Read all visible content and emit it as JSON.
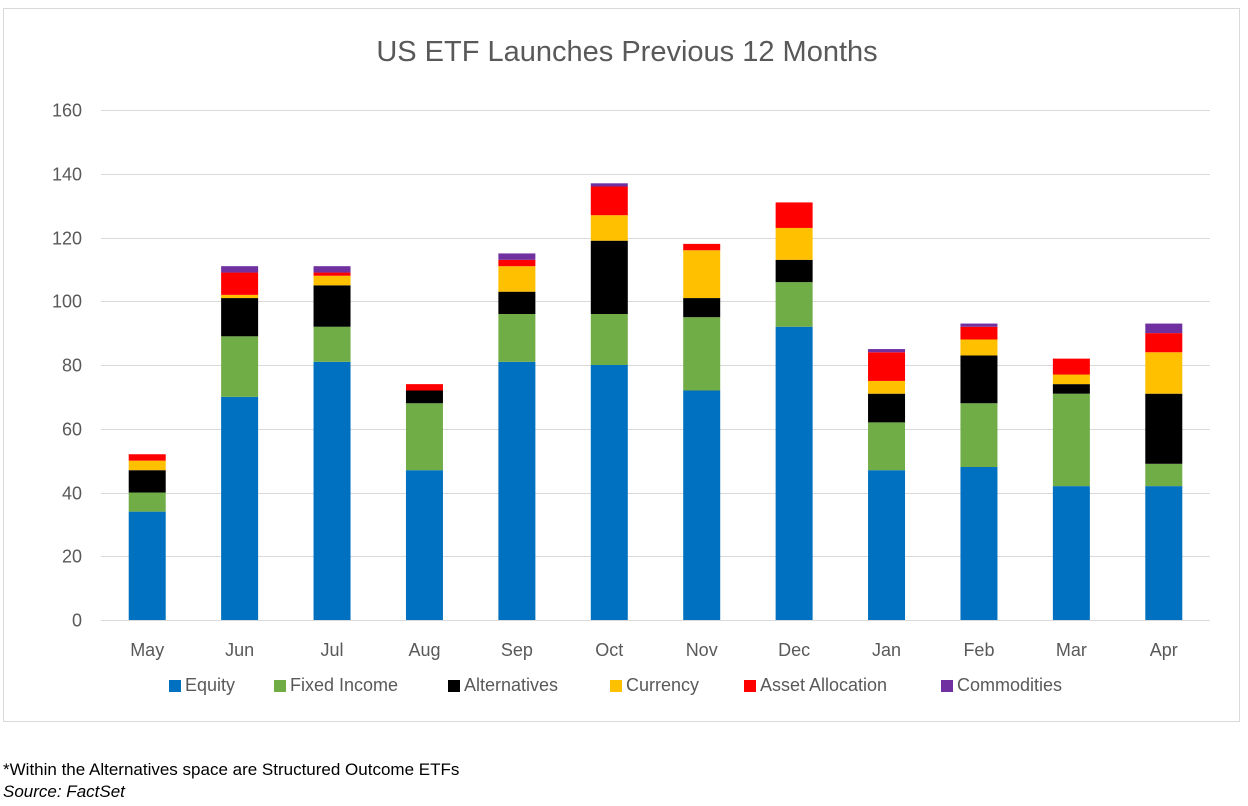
{
  "chart_data": {
    "type": "bar",
    "stacked": true,
    "title": "US ETF Launches Previous 12 Months",
    "xlabel": "",
    "ylabel": "",
    "ylim": [
      0,
      160
    ],
    "yticks": [
      0,
      20,
      40,
      60,
      80,
      100,
      120,
      140,
      160
    ],
    "grid": true,
    "legend_position": "bottom",
    "categories": [
      "May",
      "Jun",
      "Jul",
      "Aug",
      "Sep",
      "Oct",
      "Nov",
      "Dec",
      "Jan",
      "Feb",
      "Mar",
      "Apr"
    ],
    "series": [
      {
        "name": "Equity",
        "color": "#0070c0",
        "values": [
          34,
          70,
          81,
          47,
          81,
          80,
          72,
          92,
          47,
          48,
          42,
          42
        ]
      },
      {
        "name": "Fixed Income",
        "color": "#70ad47",
        "values": [
          6,
          19,
          11,
          21,
          15,
          16,
          23,
          14,
          15,
          20,
          29,
          7
        ]
      },
      {
        "name": "Alternatives",
        "color": "#000000",
        "values": [
          7,
          12,
          13,
          4,
          7,
          23,
          6,
          7,
          9,
          15,
          3,
          22
        ]
      },
      {
        "name": "Currency",
        "color": "#ffc000",
        "values": [
          3,
          1,
          3,
          0,
          8,
          8,
          15,
          10,
          4,
          5,
          3,
          13
        ]
      },
      {
        "name": "Asset Allocation",
        "color": "#ff0000",
        "values": [
          2,
          7,
          1,
          2,
          2,
          9,
          2,
          8,
          9,
          4,
          5,
          6
        ]
      },
      {
        "name": "Commodities",
        "color": "#7030a0",
        "values": [
          0,
          2,
          2,
          0,
          2,
          1,
          0,
          0,
          1,
          1,
          0,
          3
        ]
      }
    ]
  },
  "footnote": "*Within the Alternatives space are Structured Outcome ETFs",
  "source": "Source: FactSet"
}
